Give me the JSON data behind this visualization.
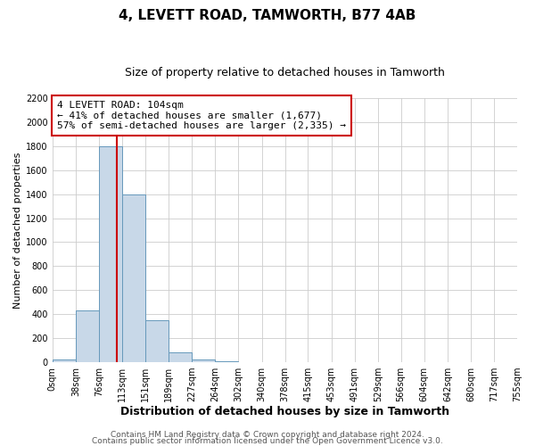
{
  "title": "4, LEVETT ROAD, TAMWORTH, B77 4AB",
  "subtitle": "Size of property relative to detached houses in Tamworth",
  "xlabel": "Distribution of detached houses by size in Tamworth",
  "ylabel": "Number of detached properties",
  "bin_edges": [
    0,
    38,
    76,
    113,
    151,
    189,
    227,
    264,
    302,
    340,
    378,
    415,
    453,
    491,
    529,
    566,
    604,
    642,
    680,
    717,
    755
  ],
  "bar_heights": [
    20,
    430,
    1800,
    1400,
    350,
    80,
    25,
    5,
    0,
    0,
    0,
    0,
    0,
    0,
    0,
    0,
    0,
    0,
    0,
    0
  ],
  "bar_color": "#c8d8e8",
  "bar_edgecolor": "#6699bb",
  "vline_x": 104,
  "vline_color": "#cc0000",
  "annotation_text": "4 LEVETT ROAD: 104sqm\n← 41% of detached houses are smaller (1,677)\n57% of semi-detached houses are larger (2,335) →",
  "annotation_box_edgecolor": "#cc0000",
  "annotation_box_facecolor": "#ffffff",
  "ylim": [
    0,
    2200
  ],
  "yticks": [
    0,
    200,
    400,
    600,
    800,
    1000,
    1200,
    1400,
    1600,
    1800,
    2000,
    2200
  ],
  "xtick_labels": [
    "0sqm",
    "38sqm",
    "76sqm",
    "113sqm",
    "151sqm",
    "189sqm",
    "227sqm",
    "264sqm",
    "302sqm",
    "340sqm",
    "378sqm",
    "415sqm",
    "453sqm",
    "491sqm",
    "529sqm",
    "566sqm",
    "604sqm",
    "642sqm",
    "680sqm",
    "717sqm",
    "755sqm"
  ],
  "footer_line1": "Contains HM Land Registry data © Crown copyright and database right 2024.",
  "footer_line2": "Contains public sector information licensed under the Open Government Licence v3.0.",
  "background_color": "#ffffff",
  "grid_color": "#cccccc",
  "title_fontsize": 11,
  "subtitle_fontsize": 9,
  "xlabel_fontsize": 9,
  "ylabel_fontsize": 8,
  "tick_fontsize": 7,
  "annotation_fontsize": 8,
  "footer_fontsize": 6.5
}
